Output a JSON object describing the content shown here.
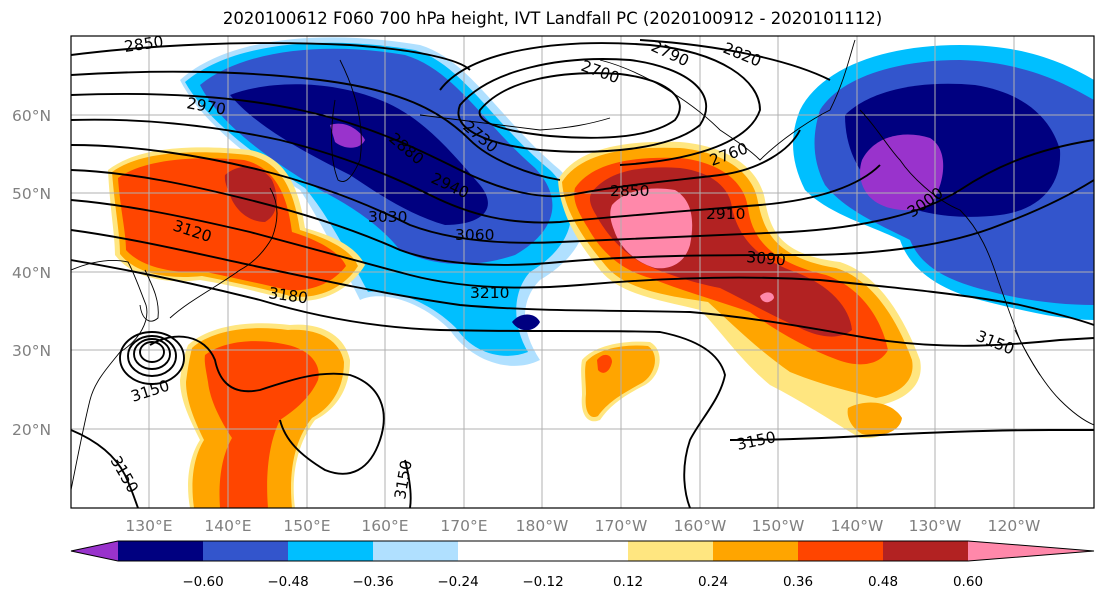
{
  "title": "2020100612 F060 700 hPa height, IVT Landfall PC (2020100912 - 2020101112)",
  "colors": {
    "level_1": "#9933cc",
    "level_2": "#000080",
    "level_3": "#3355cc",
    "level_4": "#00bfff",
    "level_5": "#b0e0ff",
    "neutral": "#ffffff",
    "level_7": "#ffe680",
    "level_8": "#ffa500",
    "level_9": "#ff4500",
    "level_10": "#b22222",
    "level_11": "#ff88aa",
    "contour": "#000000",
    "tick_label": "#808080"
  },
  "lat_labels": [
    "60°N",
    "50°N",
    "40°N",
    "30°N",
    "20°N"
  ],
  "lon_labels": [
    "130°E",
    "140°E",
    "150°E",
    "160°E",
    "170°E",
    "180°W",
    "170°W",
    "160°W",
    "150°W",
    "140°W",
    "130°W",
    "120°W"
  ],
  "contour_labels": [
    "2850",
    "2970",
    "3030",
    "3060",
    "3120",
    "3180",
    "3210",
    "3150",
    "3150",
    "3150",
    "3150",
    "3150",
    "2880",
    "2940",
    "2730",
    "2790",
    "2700",
    "2820",
    "2760",
    "2850",
    "2910",
    "3090",
    "3000"
  ],
  "colorbar": {
    "levels": [
      -0.72,
      -0.6,
      -0.48,
      -0.36,
      -0.24,
      -0.12,
      0.12,
      0.24,
      0.36,
      0.48,
      0.6,
      0.72
    ],
    "tick_labels": [
      "−0.60",
      "−0.48",
      "−0.36",
      "−0.24",
      "−0.12",
      "0.12",
      "0.24",
      "0.36",
      "0.48",
      "0.60"
    ]
  }
}
